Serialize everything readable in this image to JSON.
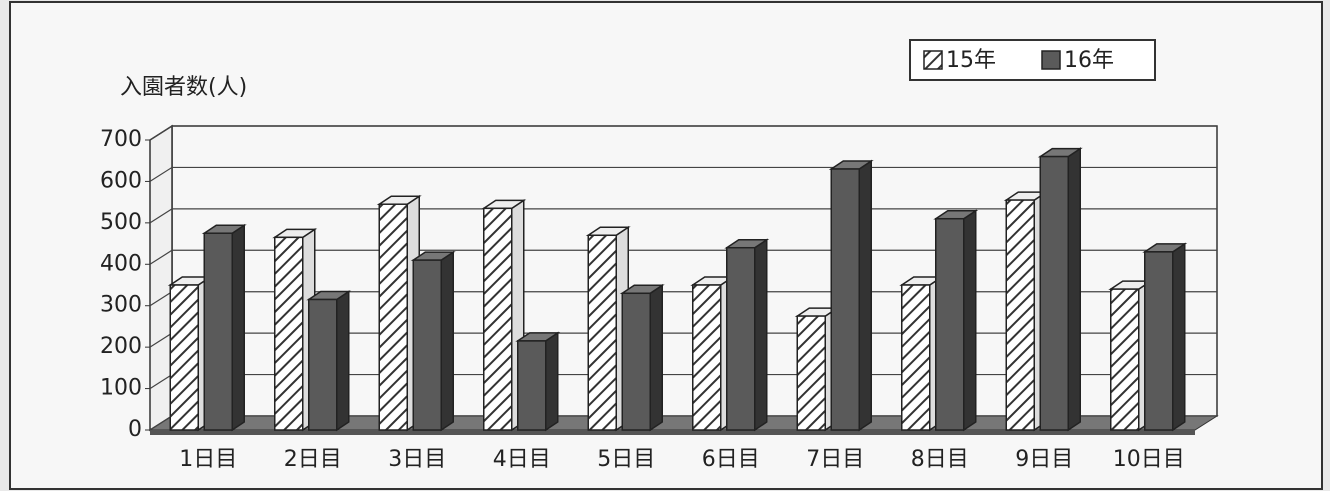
{
  "chart_data": {
    "type": "bar3d",
    "y_label": "入園者数(人)",
    "categories": [
      "1日目",
      "2日目",
      "3日目",
      "4日目",
      "5日目",
      "6日目",
      "7日目",
      "8日目",
      "9日目",
      "10日目"
    ],
    "series": [
      {
        "name": "15年",
        "color": "#ffffff",
        "hatch": true,
        "values": [
          350,
          465,
          545,
          535,
          470,
          350,
          275,
          350,
          555,
          340
        ]
      },
      {
        "name": "16年",
        "color": "#5a5a5a",
        "hatch": false,
        "values": [
          475,
          315,
          410,
          215,
          330,
          440,
          630,
          510,
          660,
          430
        ]
      }
    ],
    "ylim": [
      0,
      700
    ],
    "yticks": [
      0,
      100,
      200,
      300,
      400,
      500,
      600,
      700
    ],
    "grid": true,
    "legend": "top-right"
  }
}
